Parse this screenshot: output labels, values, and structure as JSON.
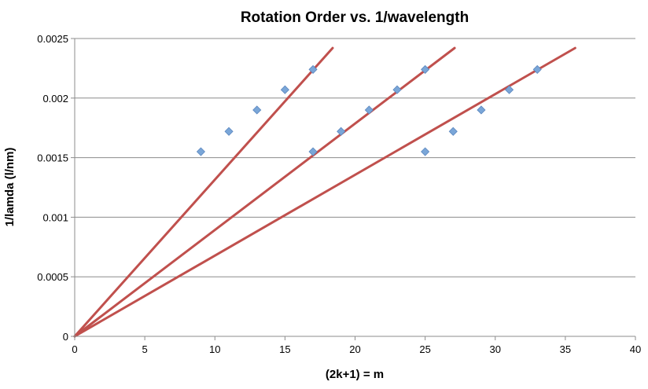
{
  "chart_data": {
    "type": "scatter",
    "title": "Rotation Order vs. 1/wavelength",
    "xlabel": "(2k+1) = m",
    "ylabel": "1/lamda (l/nm)",
    "xlim": [
      0,
      40
    ],
    "ylim": [
      0,
      0.0025
    ],
    "xticks": [
      "0",
      "5",
      "10",
      "15",
      "20",
      "25",
      "30",
      "35",
      "40"
    ],
    "yticks": [
      "0",
      "0.0005",
      "0.001",
      "0.0015",
      "0.002",
      "0.0025"
    ],
    "grid": "horizontal",
    "legend": "none",
    "marker_color": "#7aa6d8",
    "line_color": "#c0504d",
    "points": [
      {
        "x": 9,
        "y": 0.00155
      },
      {
        "x": 11,
        "y": 0.00172
      },
      {
        "x": 13,
        "y": 0.0019
      },
      {
        "x": 15,
        "y": 0.00207
      },
      {
        "x": 17,
        "y": 0.00224
      },
      {
        "x": 17,
        "y": 0.00155
      },
      {
        "x": 19,
        "y": 0.00172
      },
      {
        "x": 21,
        "y": 0.0019
      },
      {
        "x": 23,
        "y": 0.00207
      },
      {
        "x": 25,
        "y": 0.00224
      },
      {
        "x": 25,
        "y": 0.00155
      },
      {
        "x": 27,
        "y": 0.00172
      },
      {
        "x": 29,
        "y": 0.0019
      },
      {
        "x": 31,
        "y": 0.00207
      },
      {
        "x": 33,
        "y": 0.00224
      }
    ],
    "lines": [
      {
        "from": [
          0,
          0
        ],
        "to": [
          18.4,
          0.00242
        ]
      },
      {
        "from": [
          0,
          0
        ],
        "to": [
          27.1,
          0.00242
        ]
      },
      {
        "from": [
          0,
          0
        ],
        "to": [
          35.7,
          0.00242
        ]
      }
    ]
  }
}
